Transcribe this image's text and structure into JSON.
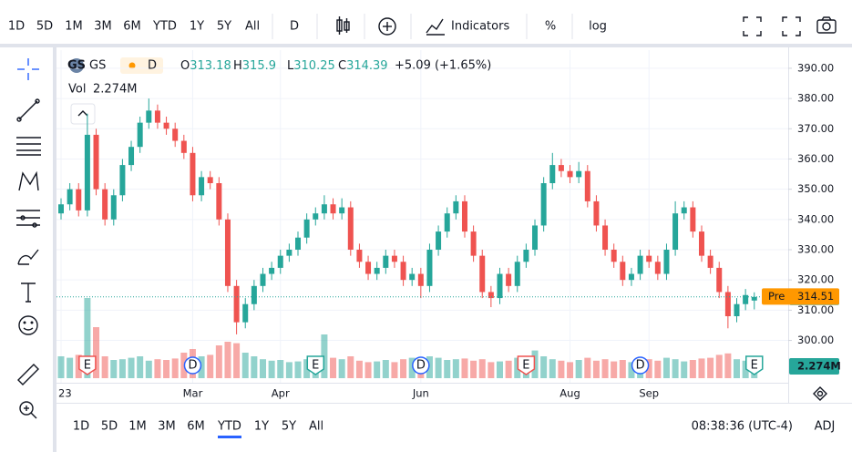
{
  "toolbar": {
    "ranges": [
      "1D",
      "5D",
      "1M",
      "3M",
      "6M",
      "YTD",
      "1Y",
      "5Y",
      "All"
    ],
    "selected_range": 5,
    "interval": "D",
    "indicators": "Indicators",
    "percent": "%",
    "log": "log"
  },
  "footer": {
    "time": "08:38:36 (UTC-4)",
    "adj": "ADJ"
  },
  "chart_data": {
    "type": "candlestick",
    "symbol": "GS",
    "interval": "D",
    "ohlc_labels": [
      "O",
      "H",
      "L",
      "C"
    ],
    "change": "+5.09 (+1.65%)",
    "vol_title": "Vol",
    "vol_label": "2.274M",
    "up_color": "#26a69a",
    "down_color": "#ef5350",
    "grid": true,
    "ylim": [
      286,
      396
    ],
    "yticks": [
      {
        "value": 300,
        "label": "300.00"
      },
      {
        "value": 310,
        "label": "310.00"
      },
      {
        "value": 320,
        "label": "320.00"
      },
      {
        "value": 330,
        "label": "330.00"
      },
      {
        "value": 340,
        "label": "340.00"
      },
      {
        "value": 350,
        "label": "350.00"
      },
      {
        "value": 360,
        "label": "360.00"
      },
      {
        "value": 370,
        "label": "370.00"
      },
      {
        "value": 380,
        "label": "380.00"
      },
      {
        "value": 390,
        "label": "390.00"
      }
    ],
    "xlabels": [
      {
        "label": "23",
        "at": 0
      },
      {
        "label": "Mar",
        "at": 15
      },
      {
        "label": "Apr",
        "at": 25
      },
      {
        "label": "Jun",
        "at": 41
      },
      {
        "label": "Aug",
        "at": 58
      },
      {
        "label": "Sep",
        "at": 67
      }
    ],
    "pre_market": {
      "label": "Pre",
      "value": 314.51,
      "color": "#ff9800"
    },
    "events": [
      {
        "label": "E",
        "at": 3,
        "color": "#ef5350"
      },
      {
        "label": "D",
        "at": 15,
        "color": "#2962ff"
      },
      {
        "label": "E",
        "at": 29,
        "color": "#26a69a"
      },
      {
        "label": "D",
        "at": 41,
        "color": "#2962ff"
      },
      {
        "label": "E",
        "at": 53,
        "color": "#ef5350"
      },
      {
        "label": "D",
        "at": 66,
        "color": "#2962ff"
      },
      {
        "label": "E",
        "at": 79,
        "color": "#26a69a"
      }
    ],
    "open": [
      342,
      345,
      350,
      343,
      368,
      350,
      340,
      348,
      358,
      364,
      372,
      376,
      372,
      370,
      366,
      362,
      348,
      354,
      352,
      340,
      318,
      306,
      312,
      318,
      322,
      324,
      328,
      330,
      334,
      340,
      342,
      345,
      342,
      344,
      330,
      326,
      322,
      324,
      328,
      326,
      320,
      322,
      318,
      330,
      336,
      342,
      346,
      336,
      328,
      316,
      314,
      322,
      318,
      326,
      330,
      338,
      352,
      358,
      356,
      354,
      356,
      346,
      338,
      330,
      326,
      320,
      322,
      328,
      326,
      322,
      330,
      342,
      344,
      336,
      328,
      324,
      316,
      308,
      312,
      313.18
    ],
    "high": [
      347,
      352,
      352,
      375,
      370,
      352,
      350,
      360,
      366,
      374,
      380,
      378,
      374,
      372,
      368,
      364,
      356,
      356,
      354,
      342,
      320,
      314,
      320,
      324,
      326,
      330,
      332,
      336,
      342,
      344,
      348,
      347,
      347,
      346,
      332,
      328,
      326,
      330,
      330,
      328,
      324,
      324,
      332,
      338,
      344,
      348,
      348,
      338,
      330,
      318,
      324,
      324,
      328,
      332,
      340,
      354,
      362,
      360,
      358,
      359,
      358,
      348,
      340,
      332,
      328,
      324,
      330,
      330,
      328,
      332,
      346,
      346,
      346,
      338,
      330,
      326,
      318,
      314,
      317,
      315.9
    ],
    "low": [
      340,
      343,
      341,
      341,
      348,
      338,
      338,
      346,
      356,
      362,
      370,
      370,
      368,
      364,
      360,
      346,
      346,
      350,
      338,
      316,
      302,
      304,
      310,
      316,
      320,
      322,
      326,
      328,
      332,
      338,
      340,
      340,
      340,
      328,
      324,
      320,
      320,
      322,
      324,
      318,
      318,
      314,
      316,
      328,
      334,
      340,
      334,
      326,
      314,
      311,
      312,
      316,
      316,
      324,
      328,
      336,
      350,
      354,
      352,
      352,
      344,
      336,
      328,
      324,
      318,
      318,
      320,
      324,
      320,
      320,
      328,
      340,
      334,
      326,
      322,
      314,
      304,
      306,
      310,
      310.25
    ],
    "close": [
      345,
      350,
      343,
      368,
      350,
      340,
      348,
      358,
      364,
      372,
      376,
      372,
      370,
      366,
      362,
      348,
      354,
      352,
      340,
      318,
      306,
      312,
      318,
      322,
      324,
      328,
      330,
      334,
      340,
      342,
      345,
      342,
      344,
      330,
      326,
      322,
      324,
      328,
      326,
      320,
      322,
      318,
      330,
      336,
      342,
      346,
      336,
      328,
      316,
      314,
      322,
      318,
      326,
      330,
      338,
      352,
      358,
      356,
      354,
      356,
      346,
      338,
      330,
      326,
      320,
      322,
      328,
      326,
      322,
      330,
      342,
      344,
      336,
      328,
      324,
      316,
      308,
      312,
      315,
      314.39
    ],
    "volume": [
      3,
      2.8,
      3.2,
      11,
      7,
      3,
      2.5,
      2.6,
      2.8,
      3,
      2.4,
      2.6,
      2.5,
      2.7,
      3.5,
      4,
      3,
      3.2,
      4.5,
      5,
      4.8,
      3.5,
      3,
      2.6,
      2.4,
      2.5,
      2.2,
      2.3,
      2.6,
      2.5,
      6,
      2.8,
      2.6,
      3,
      2.4,
      2.2,
      2.3,
      2.5,
      2.2,
      2.6,
      2.8,
      2.4,
      3,
      2.8,
      2.5,
      2.6,
      2.7,
      2.4,
      2.6,
      2.2,
      2.3,
      2.4,
      2.8,
      2.5,
      3.8,
      3,
      2.6,
      2.4,
      2.2,
      2.5,
      2.8,
      2.4,
      2.6,
      2.3,
      2.5,
      2.2,
      2.3,
      2.6,
      2.4,
      2.8,
      2.6,
      2.3,
      2.5,
      2.7,
      2.8,
      3.2,
      3.4,
      2.6,
      2.4,
      2.274
    ]
  }
}
